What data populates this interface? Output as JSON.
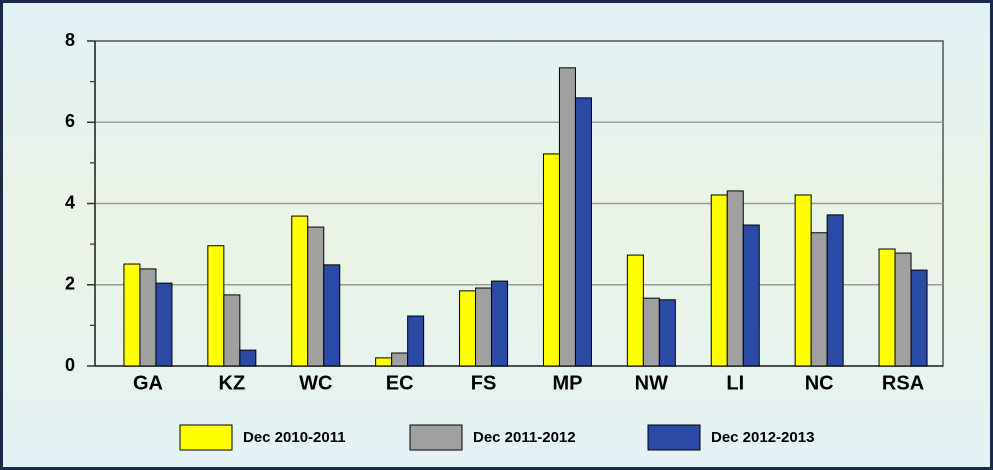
{
  "chart_data": {
    "type": "bar",
    "categories": [
      "GA",
      "KZ",
      "WC",
      "EC",
      "FS",
      "MP",
      "NW",
      "LI",
      "NC",
      "RSA"
    ],
    "series": [
      {
        "name": "Dec 2010-2011",
        "color": "#ffff00",
        "values": [
          2.51,
          2.96,
          3.69,
          0.2,
          1.85,
          5.22,
          2.73,
          4.21,
          4.21,
          2.88
        ]
      },
      {
        "name": "Dec 2011-2012",
        "color": "#a0a0a0",
        "values": [
          2.39,
          1.75,
          3.42,
          0.32,
          1.92,
          7.34,
          1.67,
          4.31,
          3.28,
          2.78
        ]
      },
      {
        "name": "Dec 2012-2013",
        "color": "#2b4aa6",
        "values": [
          2.04,
          0.39,
          2.49,
          1.23,
          2.09,
          6.6,
          1.63,
          3.47,
          3.72,
          2.36
        ]
      }
    ],
    "ylim": [
      0,
      8
    ],
    "yticks": [
      0,
      2,
      4,
      6,
      8
    ],
    "grid": true,
    "legend": "bottom"
  }
}
